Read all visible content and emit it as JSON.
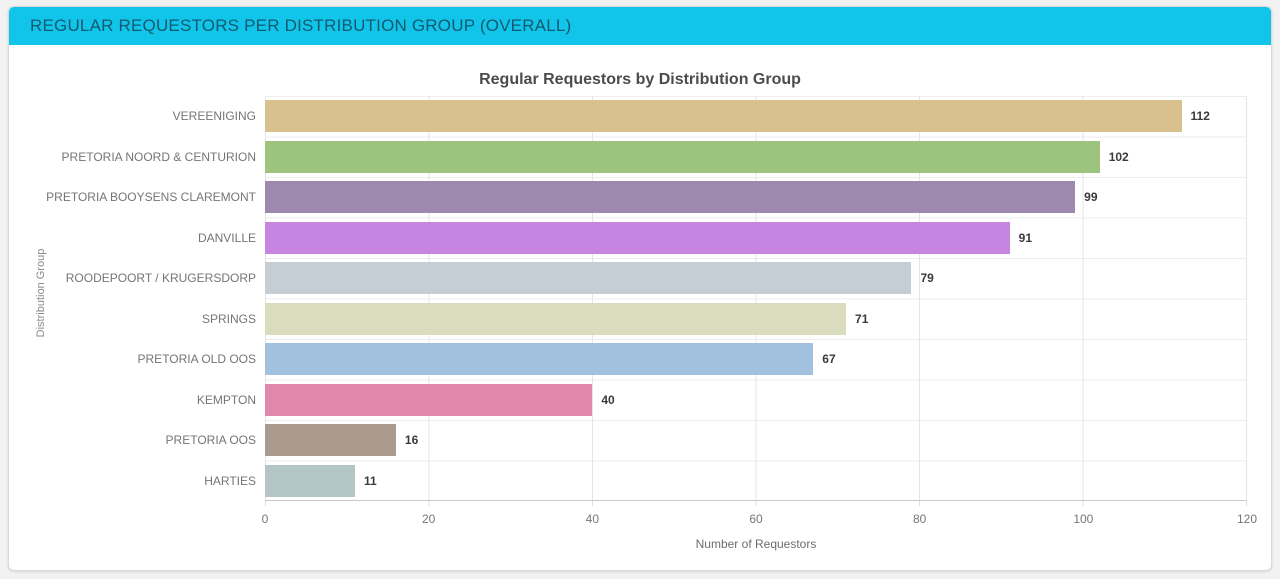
{
  "window": {
    "background": "#f2f2f2"
  },
  "panel": {
    "title": "REGULAR REQUESTORS PER DISTRIBUTION GROUP (OVERALL)",
    "header_background": "#10c5e9",
    "header_text_color": "#125a70"
  },
  "chart_data": {
    "type": "bar",
    "orientation": "horizontal",
    "title": "Regular Requestors by Distribution Group",
    "xlabel": "Number of Requestors",
    "ylabel": "Distribution Group",
    "xlim": [
      0,
      120
    ],
    "x_ticks": [
      "0",
      "20",
      "40",
      "60",
      "80",
      "100",
      "120"
    ],
    "grid": true,
    "legend_position": "none",
    "categories": [
      "VEREENIGING",
      "PRETORIA NOORD & CENTURION",
      "PRETORIA BOOYSENS CLAREMONT",
      "DANVILLE",
      "ROODEPOORT / KRUGERSDORP",
      "SPRINGS",
      "PRETORIA OLD OOS",
      "KEMPTON",
      "PRETORIA OOS",
      "HARTIES"
    ],
    "values": [
      112,
      102,
      99,
      91,
      79,
      71,
      67,
      40,
      16,
      11
    ],
    "bar_colors": [
      "#d8c18d",
      "#9dc47e",
      "#9d89ad",
      "#c685e0",
      "#c6ced5",
      "#dadcbe",
      "#a2c1df",
      "#e287ae",
      "#ab9a8e",
      "#b3c5c4"
    ]
  }
}
